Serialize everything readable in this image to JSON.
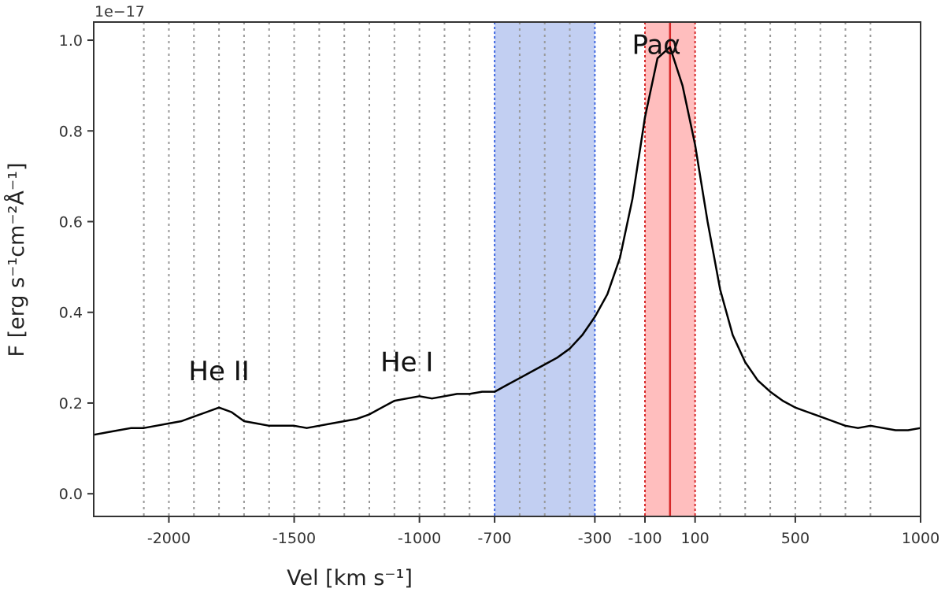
{
  "chart_data": {
    "type": "line",
    "title": "",
    "xlabel": "Vel [km s⁻¹]",
    "ylabel": "F [erg s⁻¹cm⁻²Å⁻¹]",
    "y_offset_label": "1e−17",
    "xlim": [
      -2300,
      1000
    ],
    "ylim": [
      -0.05,
      1.04
    ],
    "x_ticks": [
      {
        "value": -2000,
        "label": "-2000"
      },
      {
        "value": -1500,
        "label": "-1500"
      },
      {
        "value": -1000,
        "label": "-1000"
      },
      {
        "value": -700,
        "label": "-700"
      },
      {
        "value": -300,
        "label": "-300"
      },
      {
        "value": -100,
        "label": "-100"
      },
      {
        "value": 100,
        "label": "100"
      },
      {
        "value": 500,
        "label": "500"
      },
      {
        "value": 1000,
        "label": "1000"
      }
    ],
    "y_ticks": [
      {
        "value": 0.0,
        "label": "0.0"
      },
      {
        "value": 0.2,
        "label": "0.2"
      },
      {
        "value": 0.4,
        "label": "0.4"
      },
      {
        "value": 0.6,
        "label": "0.6"
      },
      {
        "value": 0.8,
        "label": "0.8"
      },
      {
        "value": 1.0,
        "label": "1.0"
      }
    ],
    "grid_lines_x": [
      -2100,
      -2000,
      -1900,
      -1800,
      -1700,
      -1600,
      -1500,
      -1400,
      -1300,
      -1200,
      -1100,
      -1000,
      -900,
      -800,
      -600,
      -500,
      -400,
      -200,
      200,
      300,
      400,
      500,
      600,
      700,
      800
    ],
    "blue_band": {
      "from": -700,
      "to": -300,
      "color": "#aebfee"
    },
    "red_band": {
      "from": -100,
      "to": 100,
      "color": "#ffb3b3"
    },
    "line_center": {
      "value": 0,
      "color": "#d62728"
    },
    "annotations": [
      {
        "text": "He II",
        "x": -1800,
        "y": 0.25
      },
      {
        "text": "He I",
        "x": -1050,
        "y": 0.27
      },
      {
        "text": "Paα",
        "x": 200,
        "y": 0.97
      }
    ],
    "series": [
      {
        "name": "spectrum",
        "color": "#000000",
        "x": [
          -2300,
          -2250,
          -2200,
          -2150,
          -2100,
          -2050,
          -2000,
          -1950,
          -1900,
          -1850,
          -1800,
          -1750,
          -1700,
          -1650,
          -1600,
          -1550,
          -1500,
          -1450,
          -1400,
          -1350,
          -1300,
          -1250,
          -1200,
          -1150,
          -1100,
          -1050,
          -1000,
          -950,
          -900,
          -850,
          -800,
          -750,
          -700,
          -650,
          -600,
          -550,
          -500,
          -450,
          -400,
          -350,
          -300,
          -250,
          -200,
          -150,
          -100,
          -50,
          0,
          50,
          100,
          150,
          200,
          250,
          300,
          350,
          400,
          450,
          500,
          550,
          600,
          650,
          700,
          750,
          800,
          850,
          900,
          950,
          1000
        ],
        "values": [
          0.13,
          0.135,
          0.14,
          0.145,
          0.145,
          0.15,
          0.155,
          0.16,
          0.17,
          0.18,
          0.19,
          0.18,
          0.16,
          0.155,
          0.15,
          0.15,
          0.15,
          0.145,
          0.15,
          0.155,
          0.16,
          0.165,
          0.175,
          0.19,
          0.205,
          0.21,
          0.215,
          0.21,
          0.215,
          0.22,
          0.22,
          0.225,
          0.225,
          0.24,
          0.255,
          0.27,
          0.285,
          0.3,
          0.32,
          0.35,
          0.39,
          0.44,
          0.52,
          0.65,
          0.83,
          0.96,
          0.985,
          0.9,
          0.77,
          0.6,
          0.45,
          0.35,
          0.29,
          0.25,
          0.225,
          0.205,
          0.19,
          0.18,
          0.17,
          0.16,
          0.15,
          0.145,
          0.15,
          0.145,
          0.14,
          0.14,
          0.145
        ]
      }
    ]
  }
}
